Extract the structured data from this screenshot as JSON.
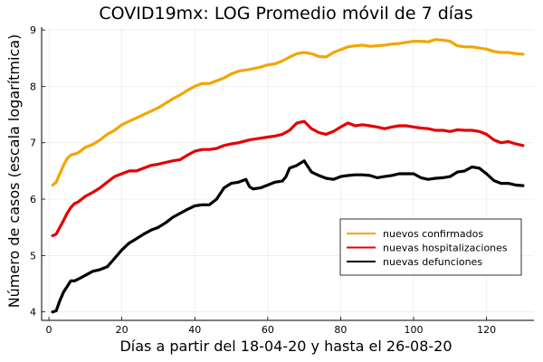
{
  "chart_data": {
    "type": "line",
    "title": "COVID19mx: LOG Promedio móvil de 7 días",
    "xlabel": "Días a partir del 18-04-20 y hasta el 26-08-20",
    "ylabel": "Número de casos (escala logarítmica)",
    "xlim": [
      -2,
      133
    ],
    "ylim": [
      3.85,
      9.05
    ],
    "xticks": [
      0,
      20,
      40,
      60,
      80,
      100,
      120
    ],
    "yticks": [
      4,
      5,
      6,
      7,
      8,
      9
    ],
    "grid": true,
    "legend_position": "bottom-right",
    "series": [
      {
        "name": "nuevos confirmados",
        "color": "#f2a600",
        "x": [
          1,
          2,
          3,
          4,
          5,
          6,
          7,
          8,
          10,
          12,
          14,
          16,
          18,
          20,
          22,
          24,
          26,
          28,
          30,
          32,
          34,
          36,
          38,
          40,
          42,
          44,
          46,
          48,
          50,
          52,
          55,
          58,
          60,
          62,
          64,
          66,
          68,
          70,
          72,
          74,
          76,
          78,
          80,
          82,
          84,
          86,
          88,
          90,
          92,
          94,
          96,
          98,
          100,
          102,
          104,
          106,
          108,
          110,
          112,
          114,
          116,
          118,
          120,
          122,
          124,
          126,
          128,
          130
        ],
        "y": [
          6.25,
          6.3,
          6.45,
          6.6,
          6.72,
          6.78,
          6.8,
          6.82,
          6.92,
          6.97,
          7.05,
          7.15,
          7.22,
          7.32,
          7.38,
          7.44,
          7.5,
          7.56,
          7.62,
          7.7,
          7.78,
          7.85,
          7.93,
          8.0,
          8.05,
          8.05,
          8.1,
          8.15,
          8.22,
          8.27,
          8.3,
          8.34,
          8.38,
          8.4,
          8.45,
          8.52,
          8.58,
          8.6,
          8.58,
          8.53,
          8.52,
          8.6,
          8.65,
          8.7,
          8.72,
          8.73,
          8.71,
          8.72,
          8.73,
          8.75,
          8.76,
          8.78,
          8.8,
          8.8,
          8.79,
          8.83,
          8.82,
          8.8,
          8.72,
          8.7,
          8.7,
          8.68,
          8.66,
          8.62,
          8.6,
          8.6,
          8.58,
          8.57
        ]
      },
      {
        "name": "nuevas hospitalizaciones",
        "color": "#e60000",
        "x": [
          1,
          2,
          3,
          4,
          5,
          6,
          7,
          8,
          10,
          12,
          14,
          16,
          18,
          20,
          22,
          24,
          26,
          28,
          30,
          32,
          34,
          36,
          38,
          40,
          42,
          44,
          46,
          48,
          50,
          52,
          55,
          58,
          60,
          62,
          64,
          66,
          68,
          70,
          72,
          74,
          76,
          78,
          80,
          82,
          84,
          86,
          88,
          90,
          92,
          94,
          96,
          98,
          100,
          102,
          104,
          106,
          108,
          110,
          112,
          114,
          116,
          118,
          120,
          122,
          124,
          126,
          128,
          130
        ],
        "y": [
          5.35,
          5.38,
          5.5,
          5.62,
          5.75,
          5.85,
          5.92,
          5.95,
          6.05,
          6.12,
          6.2,
          6.3,
          6.4,
          6.45,
          6.5,
          6.5,
          6.55,
          6.6,
          6.62,
          6.65,
          6.68,
          6.7,
          6.78,
          6.85,
          6.88,
          6.88,
          6.9,
          6.95,
          6.98,
          7.0,
          7.05,
          7.08,
          7.1,
          7.12,
          7.15,
          7.22,
          7.35,
          7.38,
          7.25,
          7.18,
          7.15,
          7.2,
          7.28,
          7.35,
          7.3,
          7.32,
          7.3,
          7.28,
          7.25,
          7.28,
          7.3,
          7.3,
          7.28,
          7.26,
          7.25,
          7.22,
          7.22,
          7.2,
          7.23,
          7.22,
          7.22,
          7.2,
          7.15,
          7.05,
          7.0,
          7.02,
          6.98,
          6.95
        ]
      },
      {
        "name": "nuevas defunciones",
        "color": "#000000",
        "x": [
          1,
          2,
          3,
          4,
          5,
          6,
          7,
          8,
          10,
          12,
          14,
          16,
          18,
          20,
          22,
          24,
          26,
          28,
          30,
          32,
          34,
          36,
          38,
          40,
          42,
          44,
          46,
          48,
          50,
          52,
          54,
          55,
          56,
          58,
          60,
          62,
          64,
          65,
          66,
          68,
          70,
          72,
          74,
          76,
          78,
          80,
          82,
          84,
          86,
          88,
          90,
          92,
          94,
          96,
          98,
          100,
          102,
          104,
          106,
          108,
          110,
          112,
          114,
          116,
          118,
          120,
          122,
          124,
          126,
          128,
          130
        ],
        "y": [
          4.0,
          4.02,
          4.2,
          4.35,
          4.45,
          4.55,
          4.55,
          4.58,
          4.65,
          4.72,
          4.75,
          4.8,
          4.95,
          5.1,
          5.22,
          5.3,
          5.38,
          5.45,
          5.5,
          5.58,
          5.68,
          5.75,
          5.82,
          5.88,
          5.9,
          5.9,
          6.0,
          6.2,
          6.28,
          6.3,
          6.35,
          6.22,
          6.18,
          6.2,
          6.25,
          6.3,
          6.32,
          6.4,
          6.55,
          6.6,
          6.68,
          6.48,
          6.42,
          6.37,
          6.35,
          6.4,
          6.42,
          6.43,
          6.43,
          6.42,
          6.38,
          6.4,
          6.42,
          6.45,
          6.45,
          6.45,
          6.38,
          6.35,
          6.37,
          6.38,
          6.4,
          6.48,
          6.5,
          6.57,
          6.55,
          6.45,
          6.33,
          6.28,
          6.28,
          6.25,
          6.24
        ]
      }
    ]
  }
}
